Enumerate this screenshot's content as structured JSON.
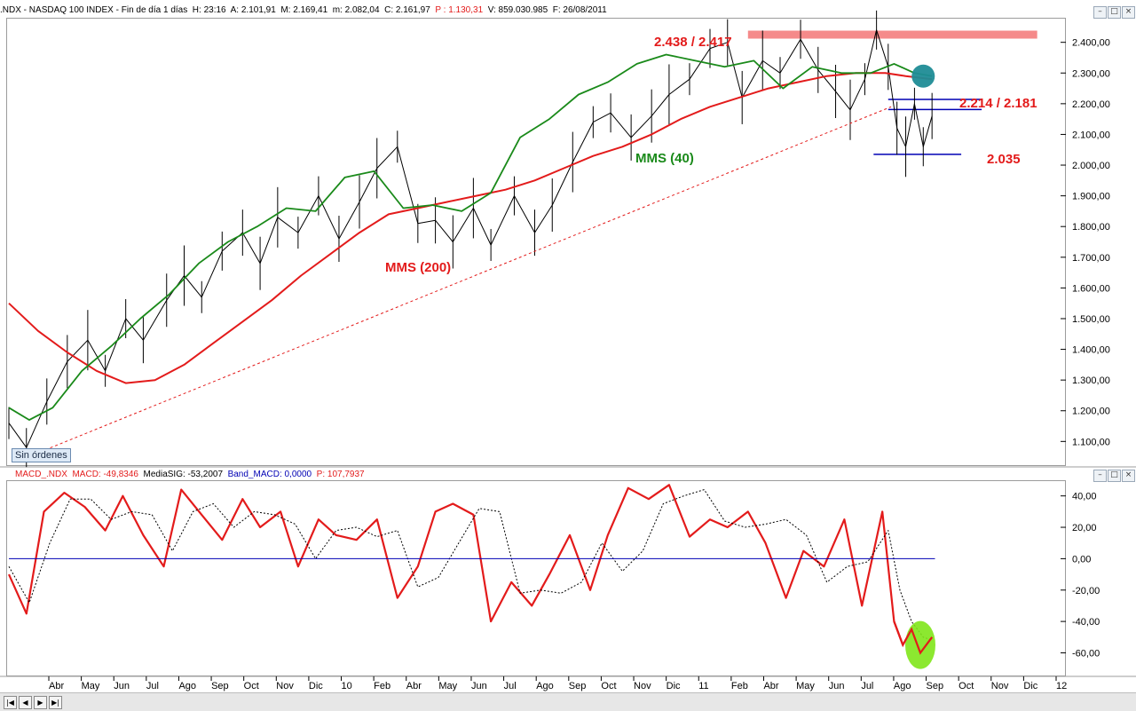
{
  "header": {
    "symbol": ".NDX",
    "name": "NASDAQ 100 INDEX",
    "period": "Fin de día 1 días",
    "time": "H: 23:16",
    "open": "A: 2.101,91",
    "high": "M: 2.169,41",
    "low": "m: 2.082,04",
    "close": "C: 2.161,97",
    "p_value": "P : 1.130,31",
    "volume": "V: 859.030.985",
    "date": "F: 26/08/2011"
  },
  "macd_header": {
    "name": "MACD_.NDX",
    "macd": "MACD: -49,8346",
    "signal": "MediaSIG: -53,2007",
    "band": "Band_MACD: 0,0000",
    "p_value": "P: 107,7937"
  },
  "sin_ordenes": "Sin órdenes",
  "annotations": {
    "resistance": "2.438 / 2.417",
    "mid_levels": "2.214 / 2.181",
    "support": "2.035",
    "mms200": "MMS (200)",
    "mms40": "MMS (40)"
  },
  "colors": {
    "ma200": "#e31b1b",
    "ma40": "#1a8a1a",
    "price": "#000000",
    "resistance_band": "#f58a8a",
    "level_lines": "#0000b4",
    "circle_teal": "#1f8c96",
    "circle_green": "#7fe51a",
    "zero_line": "#0000b4"
  },
  "icons": {
    "nav_first": "first-page-icon",
    "nav_prev": "prev-icon",
    "nav_next": "next-icon",
    "nav_last": "last-page-icon"
  },
  "chart_data": [
    {
      "type": "line",
      "title": "",
      "x_tick_labels": [
        "Abr",
        "May",
        "Jun",
        "Jul",
        "Ago",
        "Sep",
        "Oct",
        "Nov",
        "Dic",
        "10",
        "Feb",
        "Abr",
        "May",
        "Jun",
        "Jul",
        "Ago",
        "Sep",
        "Oct",
        "Nov",
        "Dic",
        "11",
        "Feb",
        "Abr",
        "May",
        "Jun",
        "Jul",
        "Ago",
        "Sep",
        "Oct",
        "Nov",
        "Dic",
        "12"
      ],
      "y_tick_labels": [
        "1.100,00",
        "1.200,00",
        "1.300,00",
        "1.400,00",
        "1.500,00",
        "1.600,00",
        "1.700,00",
        "1.800,00",
        "1.900,00",
        "2.000,00",
        "2.100,00",
        "2.200,00",
        "2.300,00",
        "2.400,00"
      ],
      "ylim": [
        1020,
        2480
      ],
      "xlim": [
        0,
        36
      ],
      "grid": false,
      "series": [
        {
          "name": "",
          "style": "price",
          "x": [
            0,
            0.6,
            1.3,
            2,
            2.7,
            3.3,
            4,
            4.6,
            5.4,
            6,
            6.6,
            7.3,
            8,
            8.6,
            9.2,
            9.9,
            10.6,
            11.3,
            12,
            12.6,
            13.3,
            14,
            14.6,
            15.2,
            15.9,
            16.5,
            17.3,
            18,
            18.6,
            19.3,
            20,
            20.6,
            21.3,
            22,
            22.6,
            23.3,
            24,
            24.6,
            25.1,
            25.8,
            26.4,
            27.1,
            27.7,
            28.3,
            28.8,
            29.3,
            29.7,
            30.1,
            30.4,
            30.7,
            31,
            31.3,
            31.6
          ],
          "y": [
            1160,
            1080,
            1230,
            1360,
            1430,
            1330,
            1500,
            1430,
            1560,
            1640,
            1570,
            1720,
            1780,
            1680,
            1830,
            1780,
            1900,
            1760,
            1880,
            1990,
            2060,
            1810,
            1820,
            1750,
            1860,
            1740,
            1900,
            1780,
            1870,
            2010,
            2140,
            2170,
            2090,
            2160,
            2230,
            2280,
            2380,
            2400,
            2220,
            2340,
            2300,
            2410,
            2310,
            2240,
            2180,
            2280,
            2440,
            2320,
            2120,
            2060,
            2200,
            2060,
            2160
          ]
        },
        {
          "name": "MMS (200)",
          "style": "ma200",
          "x": [
            0,
            1,
            2,
            3,
            4,
            5,
            6,
            7,
            8,
            9,
            10,
            11,
            12,
            13,
            14,
            15,
            16,
            17,
            18,
            19,
            20,
            21,
            22,
            23,
            24,
            25,
            26,
            27,
            28,
            29,
            30,
            30.7,
            31.6
          ],
          "y": [
            1550,
            1460,
            1390,
            1330,
            1290,
            1300,
            1350,
            1420,
            1490,
            1560,
            1640,
            1710,
            1780,
            1840,
            1860,
            1880,
            1900,
            1920,
            1950,
            1990,
            2030,
            2060,
            2100,
            2150,
            2190,
            2220,
            2250,
            2270,
            2290,
            2300,
            2300,
            2290,
            2280
          ]
        },
        {
          "name": "MMS (40)",
          "style": "ma40",
          "x": [
            0,
            0.7,
            1.5,
            2.5,
            3.5,
            4.5,
            5.5,
            6.5,
            7.5,
            8.5,
            9.5,
            10.5,
            11.5,
            12.5,
            13.5,
            14.5,
            15.5,
            16.5,
            17.5,
            18.5,
            19.5,
            20.5,
            21.5,
            22.5,
            23.5,
            24.5,
            25.5,
            26.5,
            27.5,
            28.5,
            29.5,
            30.3,
            31,
            31.6
          ],
          "y": [
            1210,
            1170,
            1210,
            1330,
            1410,
            1500,
            1580,
            1680,
            1750,
            1800,
            1860,
            1850,
            1960,
            1980,
            1860,
            1870,
            1850,
            1910,
            2090,
            2150,
            2230,
            2270,
            2330,
            2360,
            2340,
            2320,
            2340,
            2250,
            2320,
            2300,
            2300,
            2330,
            2300,
            2290
          ]
        },
        {
          "name": "",
          "style": "trendline",
          "x": [
            0.4,
            30.2
          ],
          "y": [
            1040,
            2190
          ]
        }
      ],
      "levels": [
        {
          "label": "2.438 / 2.417",
          "from": 2.438,
          "to": 2.417,
          "x_start": 25.3,
          "x_end": 35.2
        },
        {
          "label": "2.214 / 2.181",
          "values": [
            2214,
            2181
          ],
          "x_start": 30.1,
          "x_end": 33.3
        },
        {
          "label": "2.035",
          "values": [
            2035
          ],
          "x_start": 29.6,
          "x_end": 32.6
        }
      ]
    },
    {
      "type": "line",
      "title": "",
      "y_tick_labels": [
        "40,00",
        "20,00",
        "0,00",
        "-20,00",
        "-40,00",
        "-60,00"
      ],
      "ylim": [
        -75,
        50
      ],
      "xlim": [
        0,
        36
      ],
      "grid": false,
      "series": [
        {
          "name": "MACD",
          "style": "macd",
          "x": [
            0,
            0.6,
            1.2,
            1.9,
            2.6,
            3.3,
            3.9,
            4.6,
            5.3,
            5.9,
            6.6,
            7.3,
            8,
            8.6,
            9.3,
            9.9,
            10.6,
            11.2,
            11.9,
            12.6,
            13.3,
            14,
            14.6,
            15.2,
            15.9,
            16.5,
            17.2,
            17.9,
            18.5,
            19.2,
            19.9,
            20.5,
            21.2,
            21.9,
            22.6,
            23.3,
            24,
            24.6,
            25.3,
            25.9,
            26.6,
            27.2,
            27.9,
            28.6,
            29.2,
            29.9,
            30.3,
            30.6,
            30.9,
            31.2,
            31.6
          ],
          "y": [
            -10,
            -35,
            30,
            42,
            33,
            18,
            40,
            15,
            -5,
            44,
            28,
            12,
            38,
            20,
            30,
            -5,
            25,
            15,
            12,
            25,
            -25,
            -5,
            30,
            35,
            28,
            -40,
            -15,
            -30,
            -10,
            15,
            -20,
            15,
            45,
            38,
            47,
            14,
            25,
            20,
            30,
            10,
            -25,
            5,
            -5,
            25,
            -30,
            30,
            -40,
            -55,
            -45,
            -60,
            -50
          ]
        },
        {
          "name": "MediaSIG",
          "style": "signal",
          "x": [
            0,
            0.7,
            1.4,
            2.1,
            2.8,
            3.5,
            4.2,
            4.9,
            5.6,
            6.3,
            7,
            7.7,
            8.4,
            9.1,
            9.8,
            10.5,
            11.2,
            11.9,
            12.6,
            13.3,
            14,
            14.7,
            15.4,
            16.1,
            16.8,
            17.5,
            18.2,
            18.9,
            19.6,
            20.3,
            21,
            21.7,
            22.4,
            23.1,
            23.8,
            24.5,
            25.2,
            25.9,
            26.6,
            27.3,
            28,
            28.7,
            29.4,
            30.1,
            30.5,
            30.9,
            31.3,
            31.6
          ],
          "y": [
            -5,
            -28,
            10,
            38,
            38,
            25,
            30,
            28,
            5,
            30,
            35,
            20,
            30,
            28,
            22,
            0,
            18,
            20,
            14,
            18,
            -18,
            -12,
            10,
            32,
            30,
            -22,
            -20,
            -22,
            -15,
            10,
            -8,
            5,
            35,
            40,
            44,
            24,
            20,
            22,
            25,
            15,
            -15,
            -5,
            -2,
            18,
            -20,
            -40,
            -50,
            -52
          ]
        },
        {
          "name": "Band_MACD",
          "style": "zero",
          "x": [
            0,
            31.7
          ],
          "y": [
            0,
            0
          ]
        }
      ]
    }
  ]
}
